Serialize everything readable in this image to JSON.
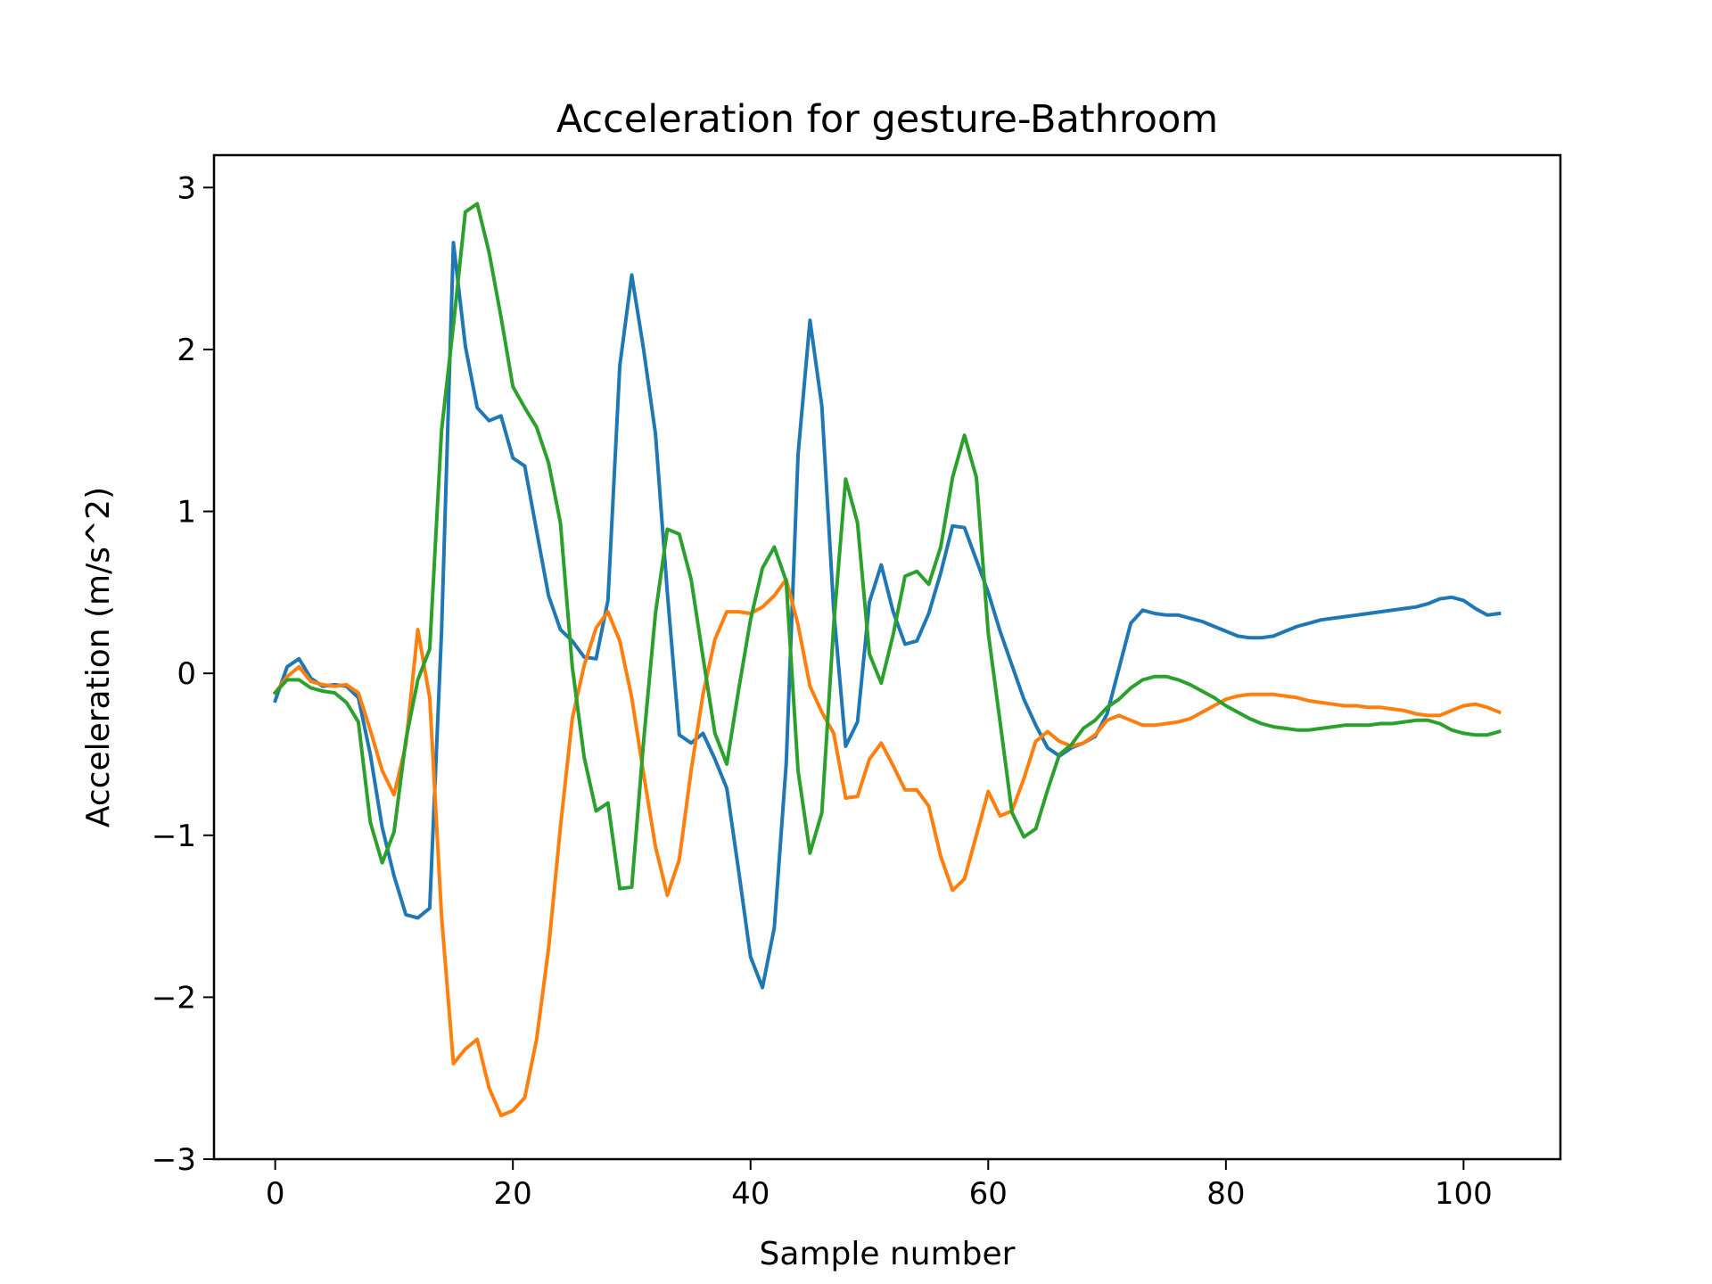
{
  "chart_data": {
    "type": "line",
    "title": "Acceleration for gesture-Bathroom",
    "xlabel": "Sample number",
    "ylabel": "Acceleration (m/s^2)",
    "xlim": [
      -5.15,
      108.15
    ],
    "ylim": [
      -3.0,
      3.2
    ],
    "xticks": [
      0,
      20,
      40,
      60,
      80,
      100
    ],
    "xtick_labels": [
      "0",
      "20",
      "40",
      "60",
      "80",
      "100"
    ],
    "yticks": [
      -3,
      -2,
      -1,
      0,
      1,
      2,
      3
    ],
    "ytick_labels": [
      "−3",
      "−2",
      "−1",
      "0",
      "1",
      "2",
      "3"
    ],
    "grid": false,
    "legend": "none",
    "series": [
      {
        "color": "#1f77b4",
        "values": [
          -0.17,
          0.04,
          0.09,
          -0.03,
          -0.08,
          -0.07,
          -0.08,
          -0.15,
          -0.5,
          -0.95,
          -1.25,
          -1.49,
          -1.51,
          -1.45,
          0.26,
          2.66,
          2.02,
          1.64,
          1.56,
          1.59,
          1.33,
          1.28,
          0.88,
          0.48,
          0.27,
          0.2,
          0.1,
          0.09,
          0.45,
          1.9,
          2.46,
          2.0,
          1.48,
          0.5,
          -0.38,
          -0.43,
          -0.37,
          -0.53,
          -0.71,
          -1.22,
          -1.75,
          -1.94,
          -1.57,
          -0.56,
          1.35,
          2.18,
          1.65,
          0.39,
          -0.45,
          -0.3,
          0.44,
          0.67,
          0.38,
          0.18,
          0.2,
          0.37,
          0.62,
          0.91,
          0.9,
          0.7,
          0.5,
          0.26,
          0.05,
          -0.16,
          -0.32,
          -0.46,
          -0.51,
          -0.46,
          -0.43,
          -0.39,
          -0.25,
          0.03,
          0.31,
          0.39,
          0.37,
          0.36,
          0.36,
          0.34,
          0.32,
          0.29,
          0.26,
          0.23,
          0.22,
          0.22,
          0.23,
          0.26,
          0.29,
          0.31,
          0.33,
          0.34,
          0.35,
          0.36,
          0.37,
          0.38,
          0.39,
          0.4,
          0.41,
          0.43,
          0.46,
          0.47,
          0.45,
          0.4,
          0.36,
          0.37
        ]
      },
      {
        "color": "#ff7f0e",
        "values": [
          -0.12,
          -0.02,
          0.04,
          -0.05,
          -0.07,
          -0.08,
          -0.07,
          -0.12,
          -0.35,
          -0.6,
          -0.75,
          -0.44,
          0.27,
          -0.15,
          -1.5,
          -2.41,
          -2.32,
          -2.26,
          -2.56,
          -2.73,
          -2.7,
          -2.62,
          -2.26,
          -1.7,
          -0.95,
          -0.28,
          0.05,
          0.28,
          0.38,
          0.2,
          -0.15,
          -0.62,
          -1.07,
          -1.37,
          -1.15,
          -0.6,
          -0.13,
          0.21,
          0.38,
          0.38,
          0.37,
          0.41,
          0.48,
          0.58,
          0.3,
          -0.08,
          -0.24,
          -0.37,
          -0.77,
          -0.76,
          -0.53,
          -0.43,
          -0.57,
          -0.72,
          -0.72,
          -0.82,
          -1.13,
          -1.34,
          -1.27,
          -1.0,
          -0.73,
          -0.88,
          -0.85,
          -0.65,
          -0.42,
          -0.36,
          -0.42,
          -0.45,
          -0.43,
          -0.38,
          -0.29,
          -0.26,
          -0.29,
          -0.32,
          -0.32,
          -0.31,
          -0.3,
          -0.28,
          -0.24,
          -0.2,
          -0.16,
          -0.14,
          -0.13,
          -0.13,
          -0.13,
          -0.14,
          -0.15,
          -0.17,
          -0.18,
          -0.19,
          -0.2,
          -0.2,
          -0.21,
          -0.21,
          -0.22,
          -0.23,
          -0.25,
          -0.26,
          -0.26,
          -0.23,
          -0.2,
          -0.19,
          -0.21,
          -0.24
        ]
      },
      {
        "color": "#2ca02c",
        "values": [
          -0.12,
          -0.04,
          -0.04,
          -0.09,
          -0.11,
          -0.12,
          -0.18,
          -0.3,
          -0.92,
          -1.17,
          -0.98,
          -0.41,
          -0.04,
          0.15,
          1.5,
          2.15,
          2.85,
          2.9,
          2.6,
          2.2,
          1.77,
          1.64,
          1.52,
          1.3,
          0.93,
          0.04,
          -0.52,
          -0.85,
          -0.8,
          -1.33,
          -1.32,
          -0.42,
          0.37,
          0.89,
          0.86,
          0.58,
          0.1,
          -0.37,
          -0.56,
          -0.1,
          0.33,
          0.65,
          0.78,
          0.57,
          -0.6,
          -1.11,
          -0.86,
          0.3,
          1.2,
          0.93,
          0.12,
          -0.06,
          0.24,
          0.6,
          0.63,
          0.55,
          0.78,
          1.21,
          1.47,
          1.21,
          0.25,
          -0.3,
          -0.86,
          -1.01,
          -0.96,
          -0.72,
          -0.5,
          -0.44,
          -0.34,
          -0.29,
          -0.21,
          -0.16,
          -0.09,
          -0.04,
          -0.02,
          -0.02,
          -0.04,
          -0.07,
          -0.11,
          -0.15,
          -0.2,
          -0.24,
          -0.28,
          -0.31,
          -0.33,
          -0.34,
          -0.35,
          -0.35,
          -0.34,
          -0.33,
          -0.32,
          -0.32,
          -0.32,
          -0.31,
          -0.31,
          -0.3,
          -0.29,
          -0.29,
          -0.31,
          -0.35,
          -0.37,
          -0.38,
          -0.38,
          -0.36
        ]
      }
    ]
  }
}
